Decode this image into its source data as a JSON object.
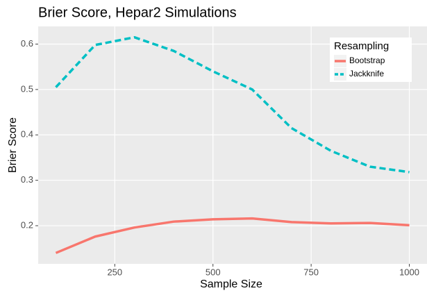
{
  "chart_data": {
    "type": "line",
    "title": "Brier Score, Hepar2 Simulations",
    "x_label": "Sample Size",
    "y_label": "Brier Score",
    "x": [
      100,
      200,
      300,
      400,
      500,
      600,
      700,
      800,
      900,
      1000
    ],
    "series": [
      {
        "name": "Bootstrap",
        "color": "#f8766d",
        "dash": "solid",
        "values": [
          0.14,
          0.176,
          0.196,
          0.209,
          0.214,
          0.216,
          0.208,
          0.205,
          0.206,
          0.201
        ]
      },
      {
        "name": "Jackknife",
        "color": "#00bfc4",
        "dash": "dashed",
        "values": [
          0.505,
          0.598,
          0.615,
          0.585,
          0.54,
          0.5,
          0.415,
          0.365,
          0.33,
          0.318
        ]
      }
    ],
    "xlim": [
      55,
      1045
    ],
    "xticks": [
      250,
      500,
      750,
      1000
    ],
    "ylim": [
      0.116,
      0.639
    ],
    "yticks": [
      0.2,
      0.3,
      0.4,
      0.5,
      0.6
    ],
    "grid": true,
    "legend_title": "Resampling",
    "legend_position": "top-right"
  }
}
